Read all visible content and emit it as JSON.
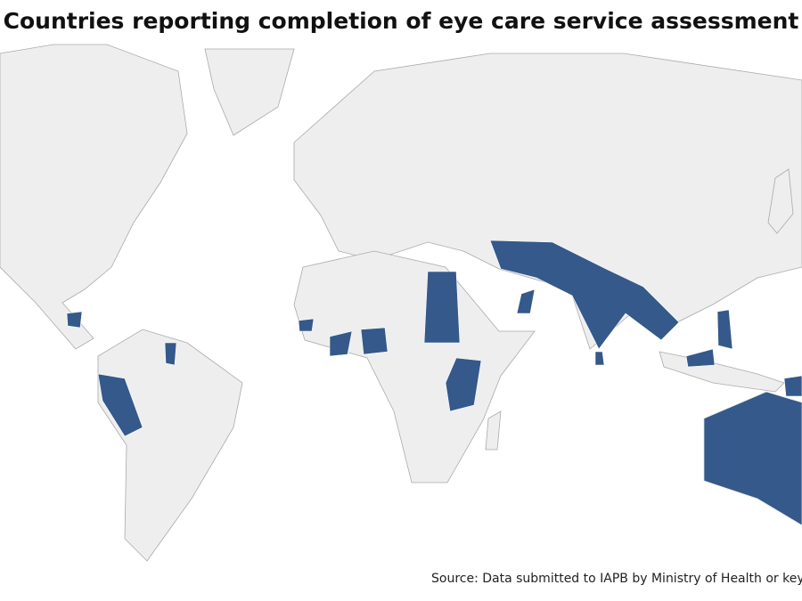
{
  "header": {
    "title": "Countries reporting completion of eye care service assessment"
  },
  "footer": {
    "source": "Source: Data submitted to IAPB by Ministry of Health or key"
  }
}
